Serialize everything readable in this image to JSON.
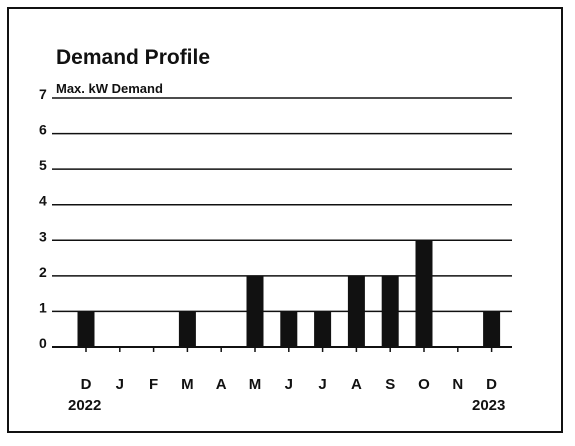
{
  "chart_data": {
    "type": "bar",
    "title": "Demand Profile",
    "ylabel": "Max. kW Demand",
    "ylim": [
      0,
      7
    ],
    "yticks": [
      "0",
      "1",
      "2",
      "3",
      "4",
      "5",
      "6",
      "7"
    ],
    "grid": true,
    "categories": [
      "D",
      "J",
      "F",
      "M",
      "A",
      "M",
      "J",
      "J",
      "A",
      "S",
      "O",
      "N",
      "D"
    ],
    "values": [
      1,
      0,
      0,
      1,
      0,
      2,
      1,
      1,
      2,
      2,
      3,
      0,
      1
    ],
    "year_labels": {
      "start": "2022",
      "end": "2023"
    },
    "bar_color": "#111111"
  }
}
